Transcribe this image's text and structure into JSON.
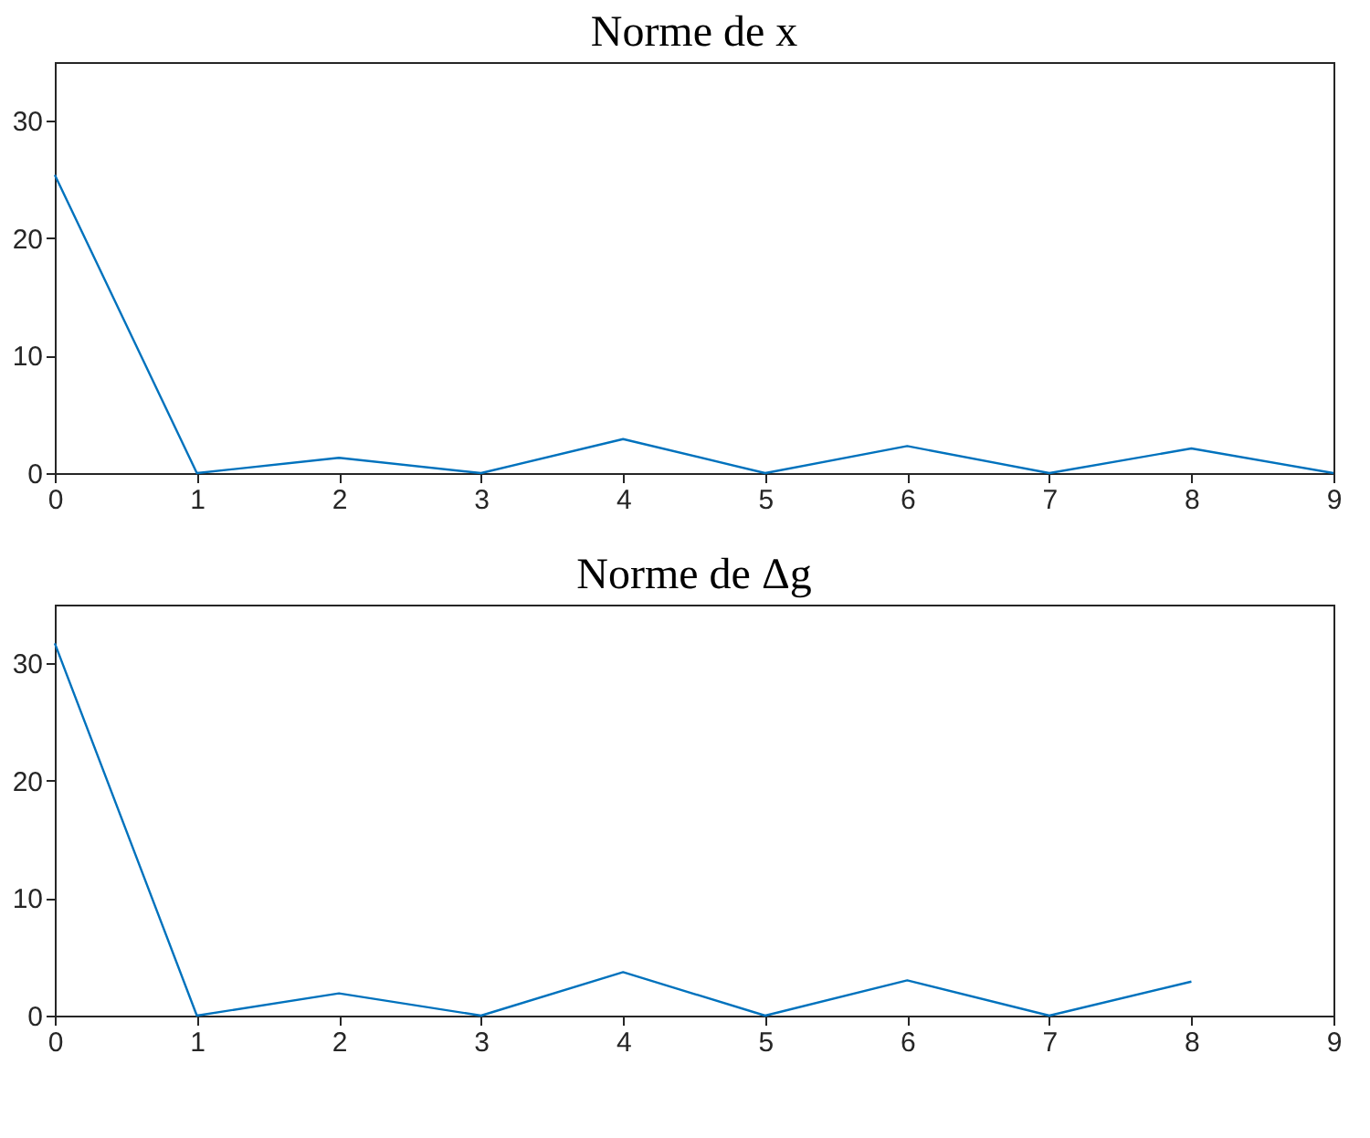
{
  "chart_data": [
    {
      "type": "line",
      "title": "Norme de x",
      "x": [
        0,
        1,
        2,
        3,
        4,
        5,
        6,
        7,
        8,
        9
      ],
      "xlim": [
        0,
        9
      ],
      "xticks": [
        0,
        1,
        2,
        3,
        4,
        5,
        6,
        7,
        8,
        9
      ],
      "ylim": [
        0,
        35
      ],
      "yticks": [
        0,
        10,
        20,
        30
      ],
      "grid": false,
      "marker": "none",
      "series": [
        {
          "color": "#0072bd",
          "values": [
            25.4,
            0,
            1.3,
            0,
            2.9,
            0,
            2.3,
            0,
            2.1,
            0
          ]
        }
      ]
    },
    {
      "type": "line",
      "title": "Norme de Δg",
      "x": [
        0,
        1,
        2,
        3,
        4,
        5,
        6,
        7,
        8
      ],
      "xlim": [
        0,
        9
      ],
      "xticks": [
        0,
        1,
        2,
        3,
        4,
        5,
        6,
        7,
        8,
        9
      ],
      "ylim": [
        0,
        35
      ],
      "yticks": [
        0,
        10,
        20,
        30
      ],
      "grid": false,
      "marker": "none",
      "series": [
        {
          "color": "#0072bd",
          "values": [
            31.7,
            0,
            1.9,
            0,
            3.7,
            0,
            3.0,
            0,
            2.9
          ]
        }
      ]
    }
  ]
}
